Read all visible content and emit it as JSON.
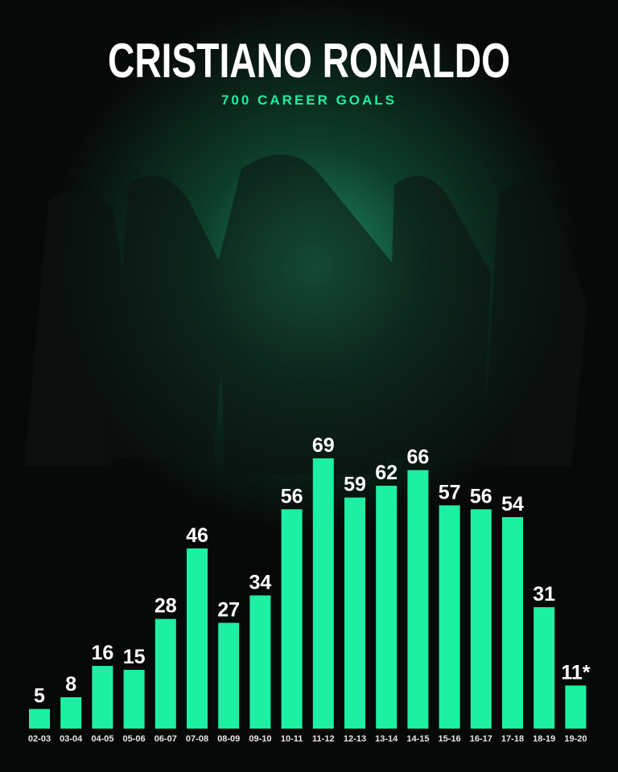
{
  "chart_data": {
    "type": "bar",
    "title": "CRISTIANO RONALDO",
    "subtitle": "700 CAREER GOALS",
    "categories": [
      "02-03",
      "03-04",
      "04-05",
      "05-06",
      "06-07",
      "07-08",
      "08-09",
      "09-10",
      "10-11",
      "11-12",
      "12-13",
      "13-14",
      "14-15",
      "15-16",
      "16-17",
      "17-18",
      "18-19",
      "19-20"
    ],
    "values": [
      5,
      8,
      16,
      15,
      28,
      46,
      27,
      34,
      56,
      69,
      59,
      62,
      66,
      57,
      56,
      54,
      31,
      11
    ],
    "value_labels": [
      "5",
      "8",
      "16",
      "15",
      "28",
      "46",
      "27",
      "34",
      "56",
      "69",
      "59",
      "62",
      "66",
      "57",
      "56",
      "54",
      "31",
      "11*"
    ],
    "color": "#1df0a2"
  }
}
